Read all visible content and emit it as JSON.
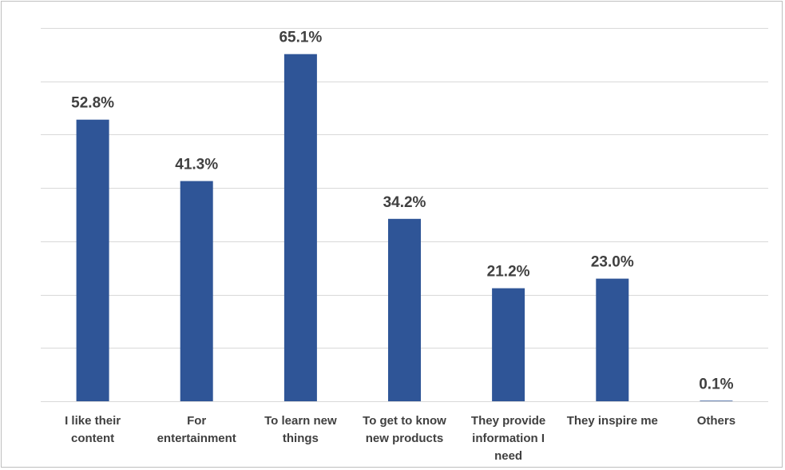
{
  "chart_data": {
    "type": "bar",
    "title": "",
    "xlabel": "",
    "ylabel": "",
    "categories": [
      [
        "I like their",
        "content"
      ],
      [
        "For",
        "entertainment"
      ],
      [
        "To learn new",
        "things"
      ],
      [
        "To get to know",
        "new products"
      ],
      [
        "They provide",
        "information I",
        "need"
      ],
      [
        "They inspire me"
      ],
      [
        "Others"
      ]
    ],
    "values": [
      52.8,
      41.3,
      65.1,
      34.2,
      21.2,
      23.0,
      0.1
    ],
    "value_labels": [
      "52.8%",
      "41.3%",
      "65.1%",
      "34.2%",
      "21.2%",
      "23.0%",
      "0.1%"
    ],
    "ylim": [
      0,
      70
    ],
    "y_gridline_step": 10,
    "grid": true,
    "legend": "none",
    "bar_color": "#2f5597"
  }
}
